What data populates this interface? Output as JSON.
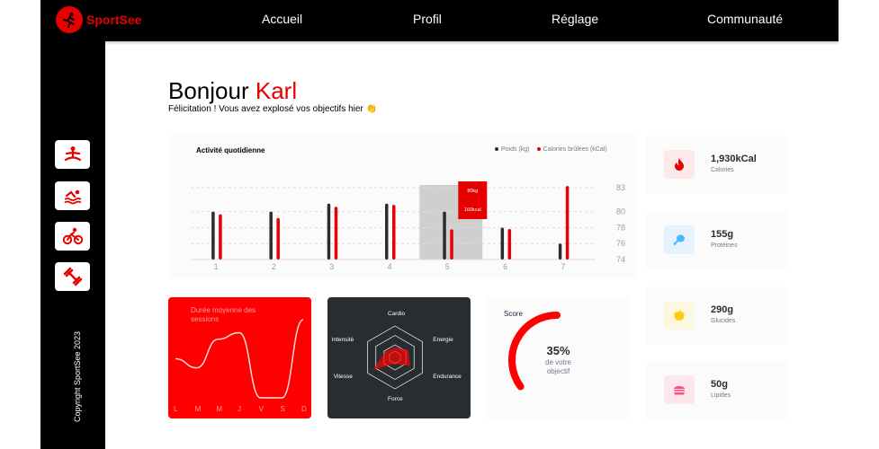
{
  "brand": {
    "name": "SportSee",
    "accent": "#e60000"
  },
  "nav": [
    "Accueil",
    "Profil",
    "Réglage",
    "Communauté"
  ],
  "sidebar": {
    "icons": [
      "yoga-icon",
      "swimming-icon",
      "cycling-icon",
      "dumbbell-icon"
    ],
    "copyright": "Copyright SportSee 2023"
  },
  "greeting": {
    "prefix": "Bonjour",
    "name": "Karl",
    "message": "Félicitation ! Vous avez explosé vos objectifs hier 👏"
  },
  "chart_data": [
    {
      "type": "bar",
      "title": "Activité quotidienne",
      "categories": [
        "1",
        "2",
        "3",
        "4",
        "5",
        "6",
        "7"
      ],
      "series": [
        {
          "name": "Poids (kg)",
          "color": "#282d30",
          "values": [
            80,
            80,
            81,
            81,
            80,
            78,
            76
          ]
        },
        {
          "name": "Calories brûlées (kCal)",
          "color": "#e60000",
          "values": [
            240,
            220,
            280,
            290,
            160,
            162,
            390
          ]
        }
      ],
      "y_ticks": [
        "83",
        "80",
        "78",
        "76",
        "74"
      ],
      "weight_range": [
        74,
        83
      ],
      "tooltip": {
        "index": 4,
        "weight": "80kg",
        "calories": "160kcal"
      },
      "grid": "dashed horizontal"
    },
    {
      "type": "line",
      "title": "Durée moyenne des sessions",
      "categories": [
        "L",
        "M",
        "M",
        "J",
        "V",
        "S",
        "D"
      ],
      "values": [
        30,
        23,
        45,
        50,
        0,
        0,
        60
      ]
    },
    {
      "type": "radar",
      "axes": [
        "Cardio",
        "Energie",
        "Endurance",
        "Force",
        "Vitesse",
        "Intensité"
      ],
      "values": [
        80,
        120,
        140,
        50,
        200,
        90
      ],
      "max": 250
    },
    {
      "type": "radial",
      "title": "Score",
      "value": 0.35,
      "percent_label": "35%",
      "subtitle": [
        "de votre",
        "objectif"
      ]
    }
  ],
  "kpis": [
    {
      "value": "1,930kCal",
      "label": "Calories",
      "icon": "fire-icon",
      "bg": "#fde9e9"
    },
    {
      "value": "155g",
      "label": "Protéines",
      "icon": "chicken-icon",
      "bg": "#e6f2fc"
    },
    {
      "value": "290g",
      "label": "Glucides",
      "icon": "apple-icon",
      "bg": "#fcf8e0"
    },
    {
      "value": "50g",
      "label": "Lipides",
      "icon": "burger-icon",
      "bg": "#fce8ec"
    }
  ]
}
